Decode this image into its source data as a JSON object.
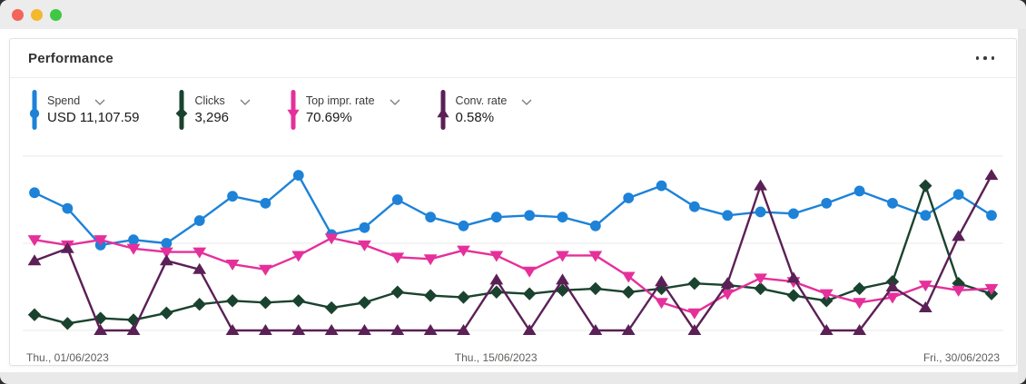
{
  "window": {
    "traffic_lights": {
      "close": "#f4645c",
      "minimize": "#f3b92e",
      "zoom": "#3ec845"
    }
  },
  "card": {
    "title": "Performance"
  },
  "metrics": [
    {
      "label": "Spend",
      "value": "USD 11,107.59",
      "color": "#1d82d8",
      "marker": "circle"
    },
    {
      "label": "Clicks",
      "value": "3,296",
      "color": "#1a432f",
      "marker": "diamond"
    },
    {
      "label": "Top impr. rate",
      "value": "70.69%",
      "color": "#e5309b",
      "marker": "triangle-down"
    },
    {
      "label": "Conv. rate",
      "value": "0.58%",
      "color": "#5b2056",
      "marker": "triangle-up"
    }
  ],
  "chart_data": {
    "type": "line",
    "x": [
      "01/06/2023",
      "02/06/2023",
      "03/06/2023",
      "04/06/2023",
      "05/06/2023",
      "06/06/2023",
      "07/06/2023",
      "08/06/2023",
      "09/06/2023",
      "10/06/2023",
      "11/06/2023",
      "12/06/2023",
      "13/06/2023",
      "14/06/2023",
      "15/06/2023",
      "16/06/2023",
      "17/06/2023",
      "18/06/2023",
      "19/06/2023",
      "20/06/2023",
      "21/06/2023",
      "22/06/2023",
      "23/06/2023",
      "24/06/2023",
      "25/06/2023",
      "26/06/2023",
      "27/06/2023",
      "28/06/2023",
      "29/06/2023",
      "30/06/2023"
    ],
    "x_tick_labels": [
      "Thu., 01/06/2023",
      "Thu., 15/06/2023",
      "Fri., 30/06/2023"
    ],
    "x_tick_positions": [
      1,
      15,
      30
    ],
    "ylim": [
      0,
      100
    ],
    "y_gridline_values": [
      0,
      50,
      100
    ],
    "y_axis_labels_visible": false,
    "legend_position": "top",
    "value_unit": "relative height, percent of plot area (no y-axis tick labels shown)",
    "series": [
      {
        "name": "Spend",
        "color": "#1d82d8",
        "marker": "circle",
        "values": [
          79,
          70,
          49,
          52,
          50,
          63,
          77,
          73,
          89,
          55,
          59,
          75,
          65,
          60,
          65,
          66,
          65,
          60,
          76,
          83,
          71,
          66,
          68,
          67,
          73,
          80,
          73,
          66,
          78,
          66
        ]
      },
      {
        "name": "Clicks",
        "color": "#1a432f",
        "marker": "diamond",
        "values": [
          9,
          4,
          7,
          6,
          10,
          15,
          17,
          16,
          17,
          13,
          16,
          22,
          20,
          19,
          22,
          21,
          23,
          24,
          22,
          24,
          27,
          26,
          24,
          20,
          17,
          24,
          28,
          83,
          27,
          21
        ]
      },
      {
        "name": "Top impr. rate",
        "color": "#e5309b",
        "marker": "triangle-down",
        "values": [
          52,
          49,
          52,
          47,
          45,
          45,
          38,
          35,
          43,
          53,
          49,
          42,
          41,
          46,
          43,
          34,
          43,
          43,
          31,
          16,
          10,
          21,
          30,
          28,
          21,
          16,
          19,
          26,
          23,
          24
        ]
      },
      {
        "name": "Conv. rate",
        "color": "#5b2056",
        "marker": "triangle-up",
        "values": [
          40,
          47,
          0,
          0,
          40,
          35,
          0,
          0,
          0,
          0,
          0,
          0,
          0,
          0,
          29,
          0,
          29,
          0,
          0,
          28,
          0,
          27,
          83,
          30,
          0,
          0,
          25,
          13,
          54,
          89
        ]
      }
    ]
  }
}
